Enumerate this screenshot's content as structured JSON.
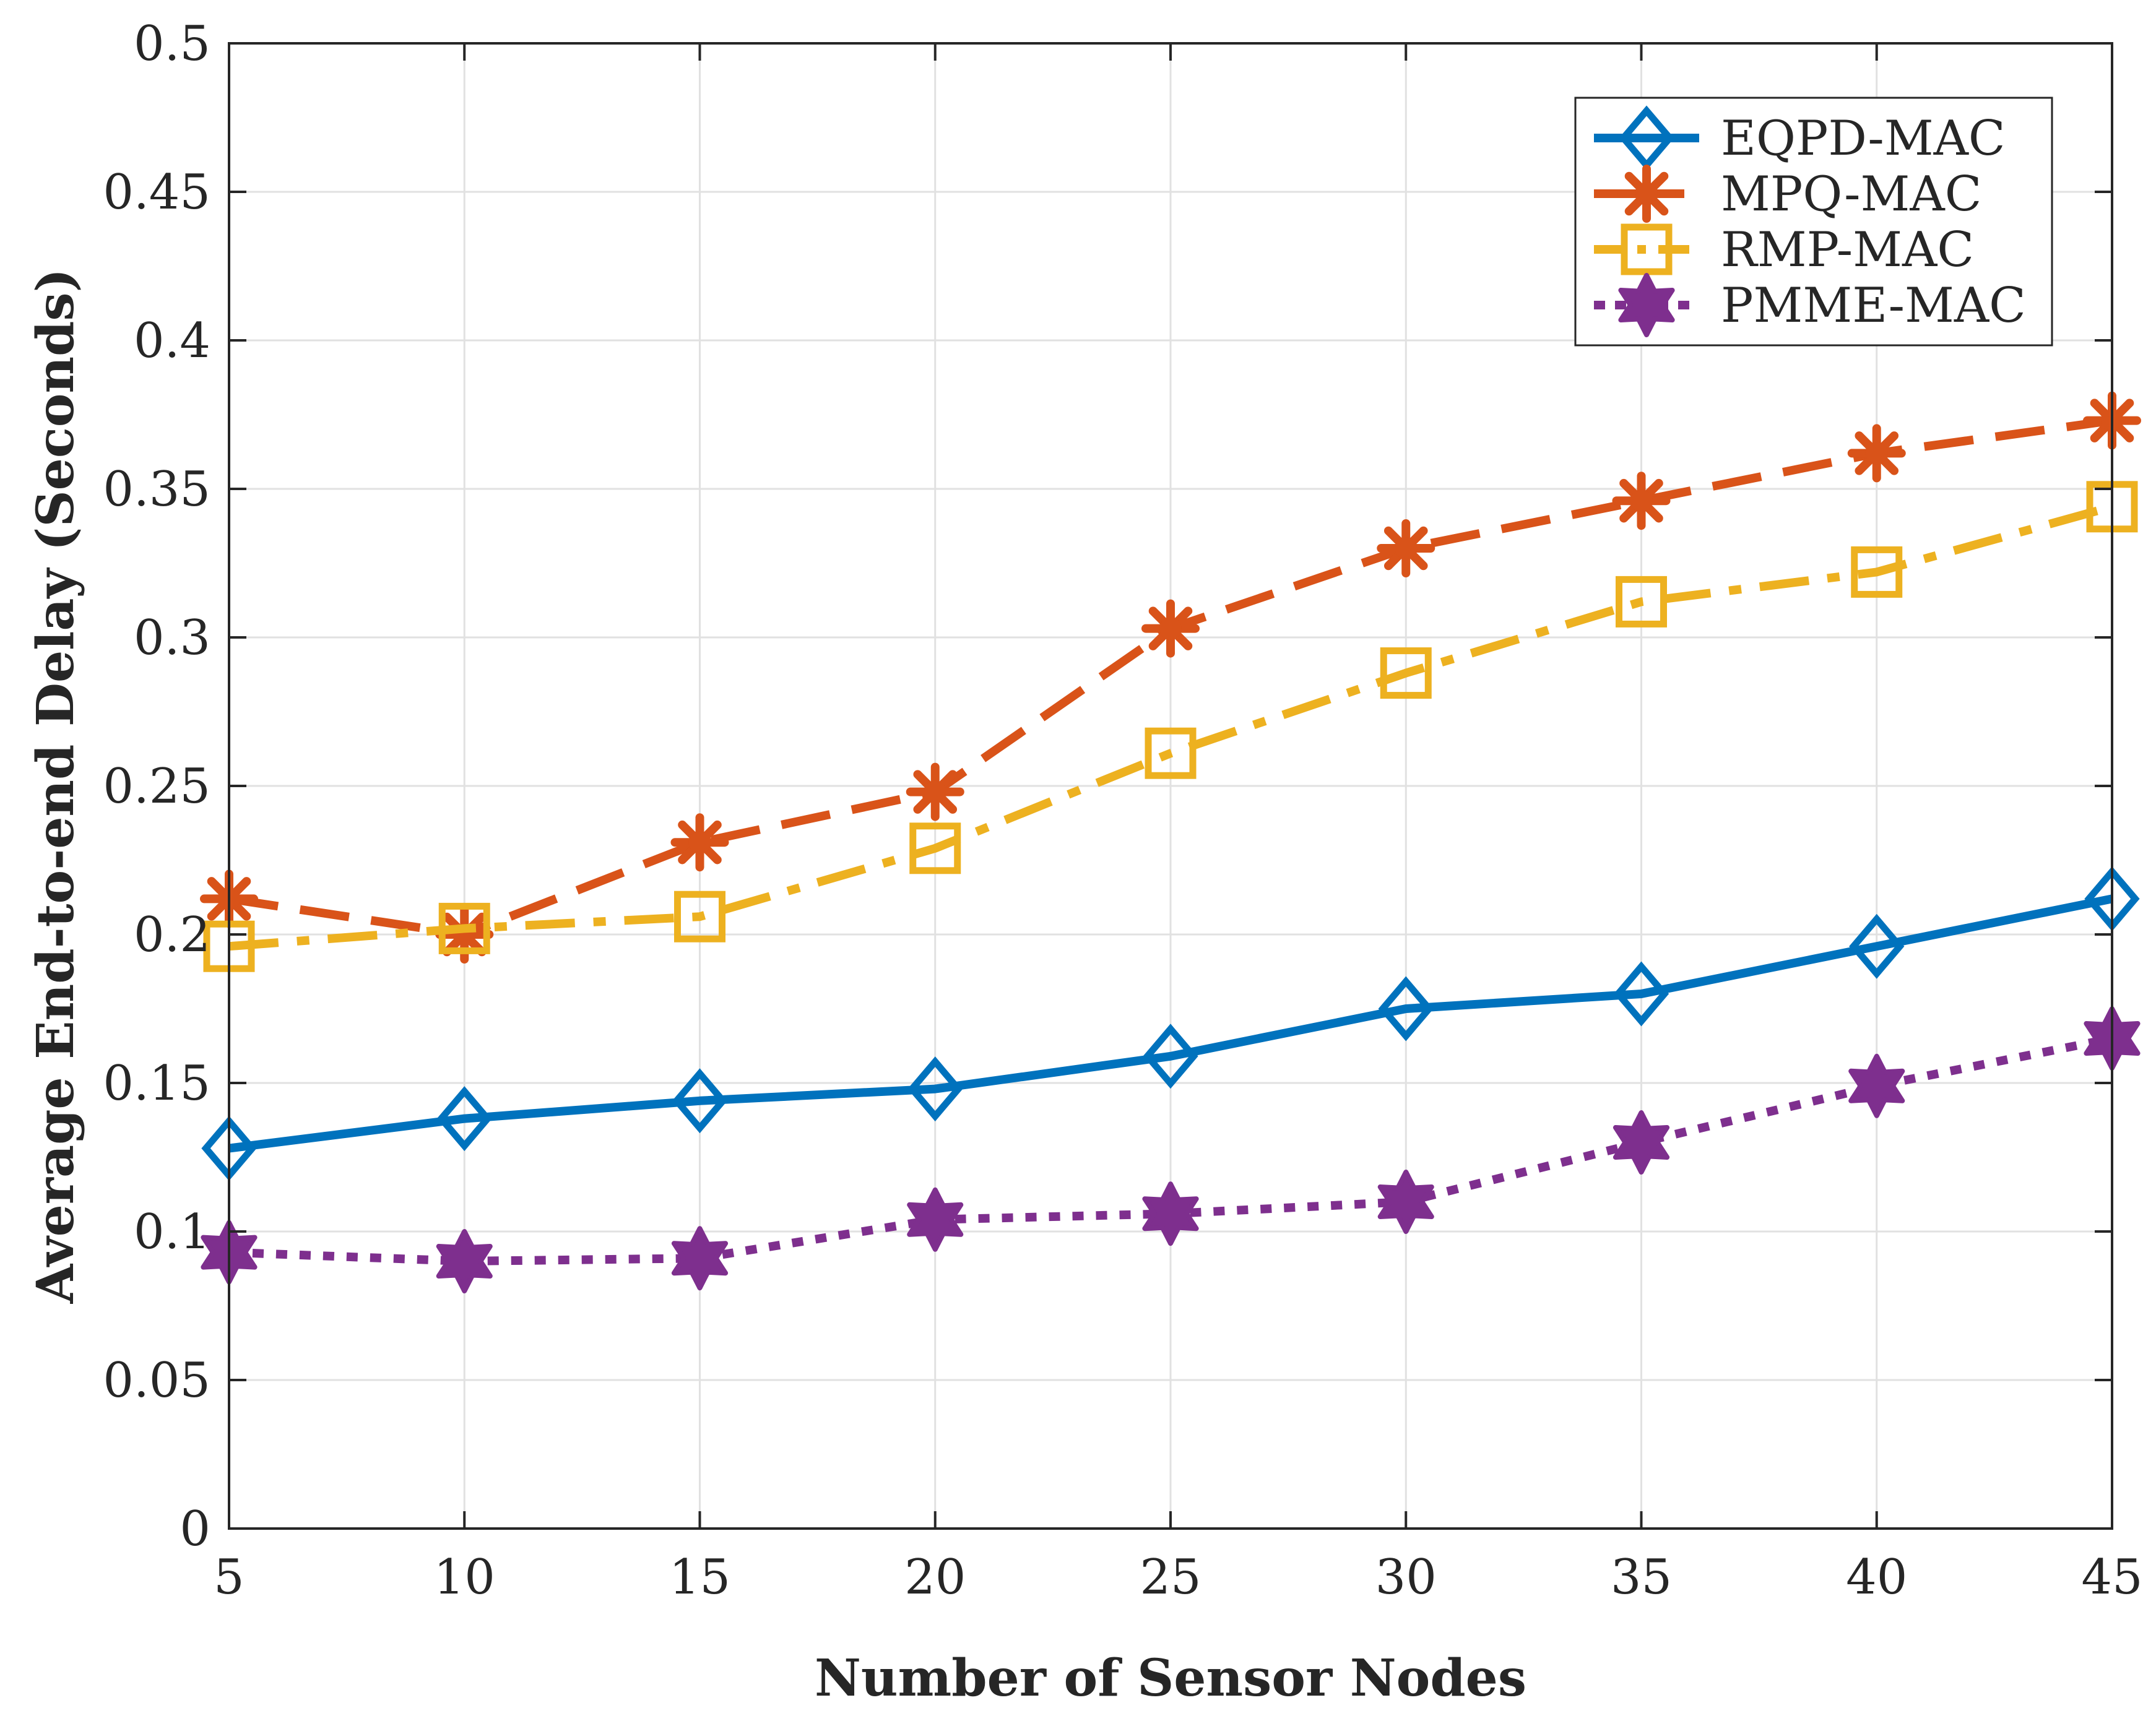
{
  "chart_data": {
    "type": "line",
    "title": "",
    "xlabel": "Number of Sensor Nodes",
    "ylabel": "Average End-to-end Delay (Seconds)",
    "x": [
      5,
      10,
      15,
      20,
      25,
      30,
      35,
      40,
      45
    ],
    "xlim": [
      5,
      45
    ],
    "ylim": [
      0,
      0.5
    ],
    "xticks": [
      "5",
      "10",
      "15",
      "20",
      "25",
      "30",
      "35",
      "40",
      "45"
    ],
    "yticks": [
      "0",
      "0.05",
      "0.1",
      "0.15",
      "0.2",
      "0.25",
      "0.3",
      "0.35",
      "0.4",
      "0.45",
      "0.5"
    ],
    "grid": true,
    "legend_position": "top-right",
    "series": [
      {
        "name": "EQPD-MAC",
        "values": [
          0.128,
          0.138,
          0.144,
          0.148,
          0.159,
          0.175,
          0.18,
          0.196,
          0.212
        ],
        "color": "#0072BD",
        "line_style": "solid",
        "marker": "diamond"
      },
      {
        "name": "MPQ-MAC",
        "values": [
          0.212,
          0.2,
          0.231,
          0.248,
          0.303,
          0.33,
          0.346,
          0.362,
          0.373
        ],
        "color": "#D95319",
        "line_style": "dashed",
        "marker": "asterisk"
      },
      {
        "name": "RMP-MAC",
        "values": [
          0.196,
          0.202,
          0.206,
          0.229,
          0.261,
          0.288,
          0.312,
          0.322,
          0.344
        ],
        "color": "#EDB120",
        "line_style": "dashdot",
        "marker": "square"
      },
      {
        "name": "PMME-MAC",
        "values": [
          0.093,
          0.09,
          0.091,
          0.104,
          0.106,
          0.11,
          0.13,
          0.149,
          0.165
        ],
        "color": "#7E2F8E",
        "line_style": "dotted",
        "marker": "hexagram"
      }
    ]
  }
}
